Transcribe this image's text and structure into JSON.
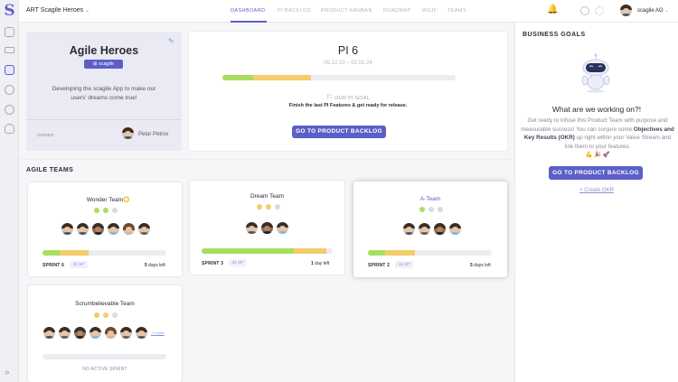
{
  "topbar": {
    "art_name": "ART Scagile Heroes",
    "nav": [
      "DASHBOARD",
      "PI BACKLOG",
      "PRODUCT KANBAN",
      "ROADMAP",
      "WSJF",
      "TEAMS"
    ],
    "user": "scagile AG"
  },
  "project": {
    "title": "Agile Heroes",
    "badge": "scagile",
    "description": "Developing the scagile App to make our users' dreams come true!",
    "owner_label": "OWNER",
    "owner_name": "Petar Petrov"
  },
  "pi": {
    "title": "PI 6",
    "dates": "05.12.23 – 02.02.24",
    "progress_done": 0.13,
    "progress_inprogress": 0.25,
    "goal_label": "OUR PI GOAL",
    "goal_text": "Finish the last PI Features & get ready for release.",
    "button": "GO TO PRODUCT BACKLOG"
  },
  "teams_section": "AGILE TEAMS",
  "teams": [
    {
      "name": "Wonder Team",
      "sprint": "SPRINT 6",
      "sp": "31 SP",
      "days": "5",
      "days_suffix": "days left",
      "done": 0.14,
      "inprogress": 0.23
    },
    {
      "name": "Dream Team",
      "sprint": "SPRINT 3",
      "sp": "31 SP",
      "days": "1",
      "days_suffix": "day left",
      "done": 0.7,
      "inprogress": 0.25
    },
    {
      "name": "A-Team",
      "sprint": "SPRINT 2",
      "sp": "31 SP",
      "days": "5",
      "days_suffix": "days left",
      "done": 0.14,
      "inprogress": 0.24
    },
    {
      "name": "Scrumbelievable Team",
      "no_sprint": "NO ACTIVE SPRINT",
      "more": "+2 more"
    }
  ],
  "goals": {
    "heading": "BUSINESS GOALS",
    "question": "What are we working on?!",
    "p1": "Get ready to infuse this Product Team with purpose and measurable success! You can conjure some ",
    "p_bold": "Objectives and Key Results (OKR)",
    "p2": " up right within your Value Stream and link them to your features.",
    "emoji": "💪 🎉 🚀",
    "button": "GO TO PRODUCT BACKLOG",
    "link": "+ Create OKR"
  },
  "colors": {
    "accent": "#5b5fc7",
    "done": "#a8dd62",
    "inprogress": "#f3cd6c"
  }
}
